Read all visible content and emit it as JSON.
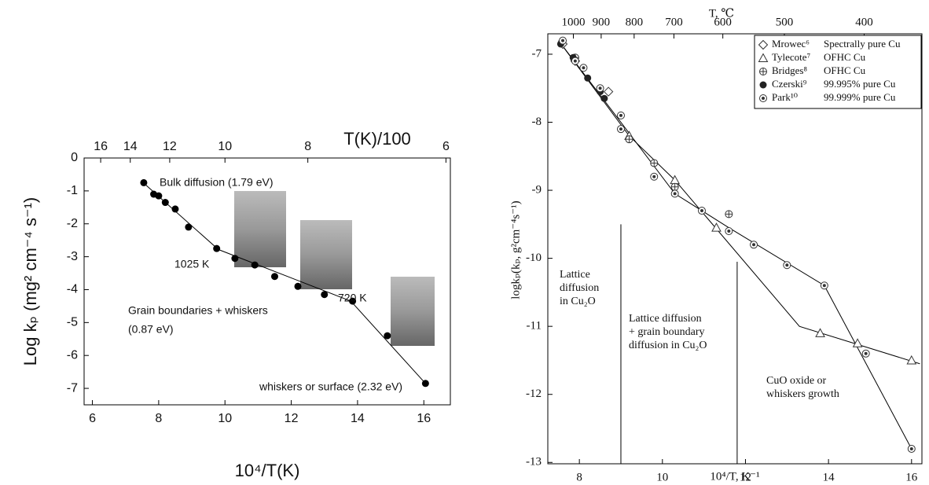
{
  "chart_data": [
    {
      "type": "scatter",
      "font": "sans",
      "x_label": "10⁴/T(K)",
      "y_label": "Log kₚ (mg² cm⁻⁴ s⁻¹)",
      "x2_label": "T(K)/100",
      "xlim": [
        5.75,
        16.8
      ],
      "ylim": [
        -7.5,
        0
      ],
      "xticks": [
        6,
        8,
        10,
        12,
        14,
        16
      ],
      "yticks": [
        0,
        -1,
        -2,
        -3,
        -4,
        -5,
        -6,
        -7
      ],
      "x2ticks": [
        {
          "value": 6.25,
          "label": "16"
        },
        {
          "value": 7.143,
          "label": "14"
        },
        {
          "value": 8.333,
          "label": "12"
        },
        {
          "value": 10,
          "label": "10"
        },
        {
          "value": 12.5,
          "label": "8"
        },
        {
          "value": 16.667,
          "label": "6"
        }
      ],
      "series": [
        {
          "marker": "circle-filled",
          "color": "#000000",
          "x": [
            7.55,
            7.85,
            8.0,
            8.2,
            8.5,
            8.9,
            9.75,
            10.3,
            10.9,
            11.5,
            12.2,
            13.0,
            13.85,
            14.9,
            16.05
          ],
          "values": [
            -0.75,
            -1.1,
            -1.15,
            -1.35,
            -1.55,
            -2.1,
            -2.75,
            -3.05,
            -3.25,
            -3.6,
            -3.9,
            -4.15,
            -4.35,
            -5.4,
            -6.85
          ]
        }
      ],
      "lines": [
        {
          "x": [
            7.5,
            9.8,
            13.8,
            16.05
          ],
          "values": [
            -0.72,
            -2.78,
            -4.35,
            -6.85
          ]
        }
      ],
      "annotations": [
        "Bulk diffusion (1.79 eV)",
        "1025 K",
        "720 K",
        "Grain boundaries + whiskers",
        "(0.87 eV)",
        "whiskers or surface (2.32 eV)"
      ]
    },
    {
      "type": "scatter",
      "font": "serif",
      "x_label": "10⁴/T, K⁻¹",
      "y_label": "logkₚ(kₚ, g²cm⁻⁴s⁻¹)",
      "x2_label": "T, ℃",
      "xlim": [
        7.24,
        16.25
      ],
      "ylim": [
        -13.02,
        -6.7
      ],
      "xticks": [
        8,
        10,
        12,
        14,
        16
      ],
      "yticks": [
        -7,
        -8,
        -9,
        -10,
        -11,
        -12,
        -13
      ],
      "x2ticks": [
        {
          "value": 7.855,
          "label": "1000"
        },
        {
          "value": 8.525,
          "label": "900"
        },
        {
          "value": 9.319,
          "label": "800"
        },
        {
          "value": 10.277,
          "label": "700"
        },
        {
          "value": 11.455,
          "label": "600"
        },
        {
          "value": 12.937,
          "label": "500"
        },
        {
          "value": 14.859,
          "label": "400"
        }
      ],
      "series": [
        {
          "name": "Mrowec⁶",
          "description": "Spectrally pure Cu",
          "marker": "diamond",
          "color": "#333333",
          "x": [
            7.6,
            7.9,
            8.7
          ],
          "values": [
            -6.85,
            -7.1,
            -7.55
          ]
        },
        {
          "name": "Tylecote⁷",
          "description": "OFHC Cu",
          "marker": "triangle",
          "color": "#333333",
          "x": [
            9.2,
            10.3,
            11.3,
            13.8,
            14.7,
            16.0
          ],
          "values": [
            -8.2,
            -8.85,
            -9.55,
            -11.1,
            -11.25,
            -11.5
          ]
        },
        {
          "name": "Bridges⁸",
          "description": "OFHC Cu",
          "marker": "circle-plus",
          "color": "#333333",
          "x": [
            7.9,
            9.2,
            9.8,
            10.3,
            11.6
          ],
          "values": [
            -7.05,
            -8.25,
            -8.6,
            -8.95,
            -9.35
          ]
        },
        {
          "name": "Czerski⁹",
          "description": "99.995% pure Cu",
          "marker": "circle-filled",
          "color": "#222222",
          "x": [
            7.55,
            7.85,
            8.2,
            8.5,
            8.6
          ],
          "values": [
            -6.85,
            -7.05,
            -7.35,
            -7.55,
            -7.65
          ]
        },
        {
          "name": "Park¹⁰",
          "description": "99.999% pure Cu",
          "marker": "circle-dot",
          "color": "#333333",
          "x": [
            7.6,
            7.9,
            8.1,
            8.5,
            9.0,
            9.0,
            9.8,
            10.3,
            10.95,
            11.6,
            12.2,
            13.0,
            13.9,
            14.9,
            16.0
          ],
          "values": [
            -6.8,
            -7.1,
            -7.2,
            -7.5,
            -7.9,
            -8.1,
            -8.8,
            -9.05,
            -9.3,
            -9.6,
            -9.8,
            -10.1,
            -10.4,
            -11.4,
            -12.8
          ]
        }
      ],
      "lines": [
        {
          "x": [
            7.5,
            9.2,
            10.3,
            13.3,
            16.2
          ],
          "values": [
            -6.8,
            -8.2,
            -8.85,
            -11.0,
            -11.55
          ]
        },
        {
          "x": [
            7.5,
            9.0,
            10.3,
            11.6,
            13.9,
            16.0
          ],
          "values": [
            -6.8,
            -8.0,
            -9.05,
            -9.55,
            -10.4,
            -12.8
          ]
        }
      ],
      "vlines": [
        {
          "x": 9.0,
          "values": [
            -13.02,
            -9.5
          ]
        },
        {
          "x": 11.8,
          "values": [
            -13.02,
            -10.05
          ]
        }
      ],
      "annotations": [
        "Lattice",
        "diffusion",
        "in Cu₂O",
        "Lattice diffusion",
        "+ grain boundary",
        "diffusion in Cu₂O",
        "CuO oxide or",
        "whiskers growth"
      ]
    }
  ]
}
